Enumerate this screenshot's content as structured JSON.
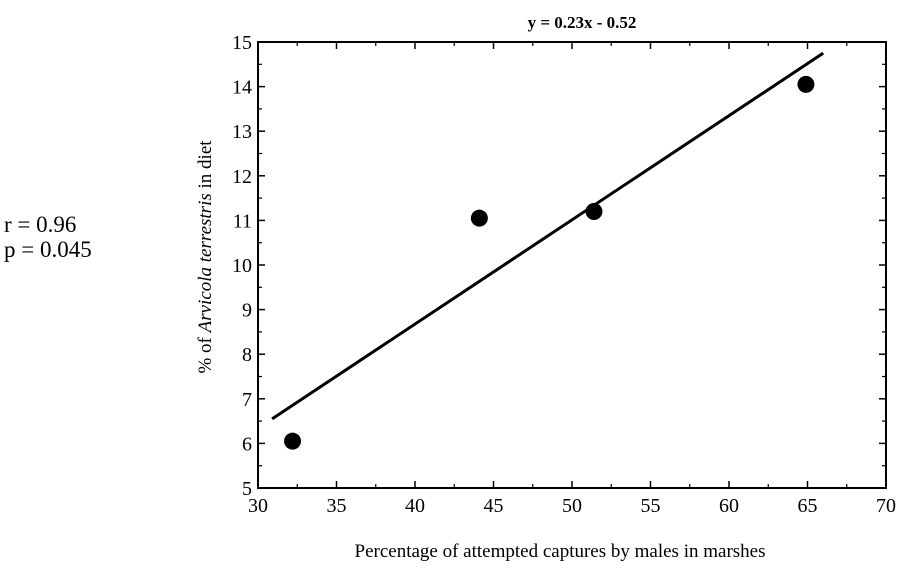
{
  "stats": {
    "r": "r = 0.96",
    "p": "p = 0.045"
  },
  "chart_data": {
    "type": "scatter",
    "title": "y = 0.23x - 0.52",
    "xlabel": "Percentage of attempted captures by males in marshes",
    "ylabel_prefix": "% of ",
    "ylabel_italic": "Arvicola terrestris",
    "ylabel_suffix": " in diet",
    "xlim": [
      30,
      70
    ],
    "ylim": [
      5,
      15
    ],
    "xticks": [
      30,
      35,
      40,
      45,
      50,
      55,
      60,
      65,
      70
    ],
    "yticks": [
      5,
      6,
      7,
      8,
      9,
      10,
      11,
      12,
      13,
      14,
      15
    ],
    "points": [
      {
        "x": 32.2,
        "y": 6.05
      },
      {
        "x": 44.1,
        "y": 11.05
      },
      {
        "x": 51.4,
        "y": 11.2
      },
      {
        "x": 64.9,
        "y": 14.05
      }
    ],
    "fit_line": {
      "x": [
        30.9,
        66.0
      ],
      "y": [
        6.55,
        14.75
      ]
    },
    "grid": false,
    "point_color": "#000000",
    "line_color": "#000000"
  }
}
